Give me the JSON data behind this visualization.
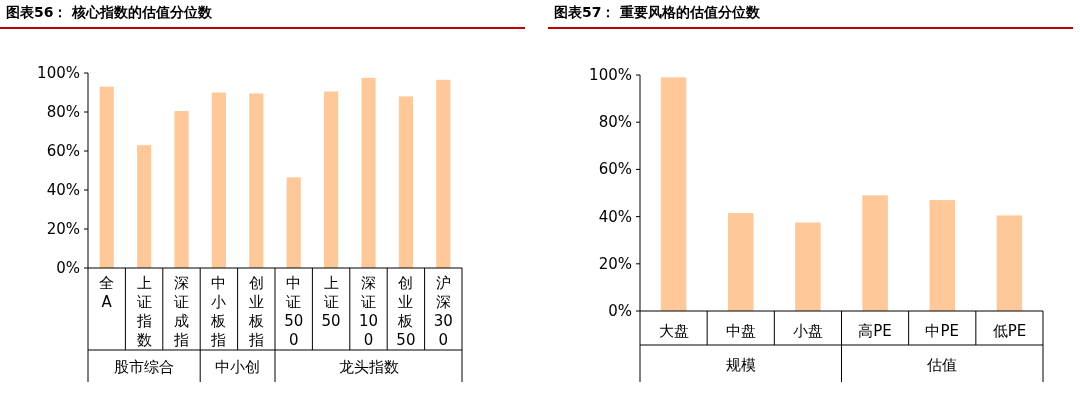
{
  "chart_data": [
    {
      "type": "bar",
      "title": "图表56： 核心指数的估值分位数",
      "categories": [
        "全A",
        "上证指数",
        "深证成指",
        "中小板指",
        "创业板指",
        "中证500",
        "上证50",
        "深证100",
        "创业板50",
        "沪深300"
      ],
      "values": [
        93,
        63,
        80.5,
        90,
        89.5,
        46.5,
        90.5,
        97.5,
        88,
        96.5
      ],
      "color": "#ffc899",
      "ylim": [
        0,
        100
      ],
      "yticks": [
        {
          "value": 0,
          "label": "0%"
        },
        {
          "value": 20,
          "label": "20%"
        },
        {
          "value": 40,
          "label": "40%"
        },
        {
          "value": 60,
          "label": "60%"
        },
        {
          "value": 80,
          "label": "80%"
        },
        {
          "value": 100,
          "label": "100%"
        }
      ],
      "annotations": [
        "股市综合",
        "中小创",
        "龙头指数"
      ]
    },
    {
      "type": "bar",
      "title": "图表57： 重要风格的估值分位数",
      "categories": [
        "大盘",
        "中盘",
        "小盘",
        "高PE",
        "中PE",
        "低PE"
      ],
      "values": [
        99,
        41.5,
        37.5,
        49,
        47,
        40.5
      ],
      "color": "#ffc899",
      "ylim": [
        0,
        100
      ],
      "yticks": [
        {
          "value": 0,
          "label": "0%"
        },
        {
          "value": 20,
          "label": "20%"
        },
        {
          "value": 40,
          "label": "40%"
        },
        {
          "value": 60,
          "label": "60%"
        },
        {
          "value": 80,
          "label": "80%"
        },
        {
          "value": 100,
          "label": "100%"
        }
      ],
      "annotations": [
        "规模",
        "估值"
      ]
    }
  ]
}
